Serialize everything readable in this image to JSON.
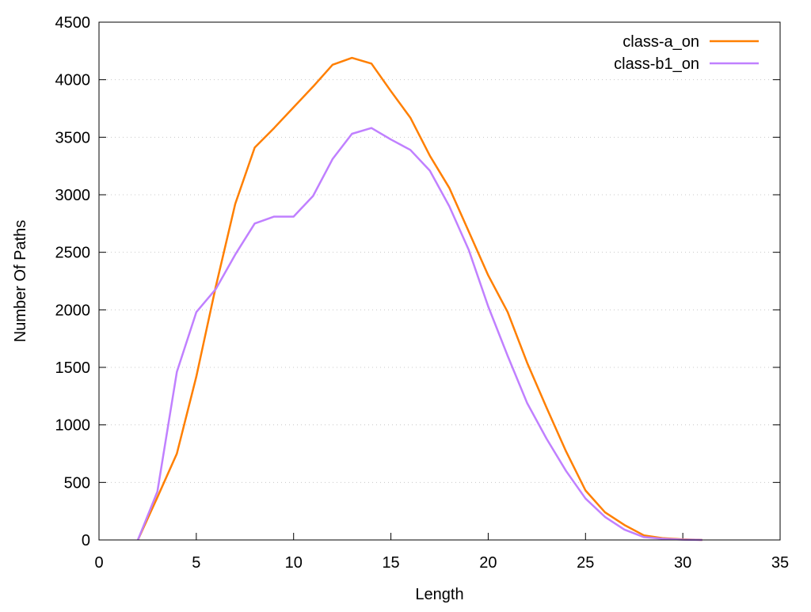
{
  "chart_data": {
    "type": "line",
    "title": "",
    "xlabel": "Length",
    "ylabel": "Number Of Paths",
    "xlim": [
      0,
      35
    ],
    "ylim": [
      0,
      4500
    ],
    "xticks": [
      0,
      5,
      10,
      15,
      20,
      25,
      30,
      35
    ],
    "yticks": [
      0,
      500,
      1000,
      1500,
      2000,
      2500,
      3000,
      3500,
      4000,
      4500
    ],
    "grid": "horizontal dotted",
    "legend_position": "top-right",
    "x": [
      2,
      3,
      4,
      5,
      6,
      7,
      8,
      9,
      10,
      11,
      12,
      13,
      14,
      15,
      16,
      17,
      18,
      19,
      20,
      21,
      22,
      23,
      24,
      25,
      26,
      27,
      28,
      29,
      30,
      31
    ],
    "series": [
      {
        "name": "class-a_on",
        "color": "#ff7f00",
        "values": [
          0,
          370,
          750,
          1420,
          2200,
          2920,
          3410,
          3580,
          3760,
          3940,
          4130,
          4190,
          4140,
          3900,
          3670,
          3340,
          3060,
          2680,
          2300,
          1980,
          1540,
          1150,
          770,
          430,
          240,
          130,
          40,
          15,
          5,
          0
        ]
      },
      {
        "name": "class-b1_on",
        "color": "#c080ff",
        "values": [
          0,
          420,
          1460,
          1980,
          2180,
          2480,
          2750,
          2810,
          2810,
          2990,
          3310,
          3530,
          3580,
          3480,
          3390,
          3210,
          2900,
          2520,
          2030,
          1600,
          1190,
          880,
          600,
          360,
          200,
          90,
          25,
          10,
          3,
          0
        ]
      }
    ]
  }
}
